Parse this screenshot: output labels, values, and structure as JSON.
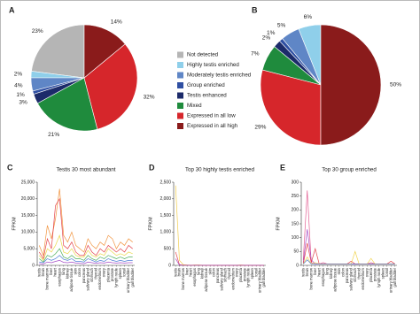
{
  "chart_data": [
    {
      "type": "pie",
      "panel": "A",
      "categories": [
        "Not detected",
        "Highly testis enriched",
        "Moderately testis enriched",
        "Group enriched",
        "Testis enhanced",
        "Mixed",
        "Expressed in all low",
        "Expressed in all high"
      ],
      "colors": [
        "#b5b5b5",
        "#8fcfea",
        "#5f86c6",
        "#2f4fa2",
        "#1c2b6a",
        "#1f8b3d",
        "#d6262b",
        "#8a1b1b"
      ],
      "values": [
        23,
        2,
        4,
        1,
        3,
        21,
        32,
        14
      ],
      "value_labels": [
        "23%",
        "2%",
        "4%",
        "1%",
        "3%",
        "21%",
        "32%",
        "14%"
      ]
    },
    {
      "type": "pie",
      "panel": "B",
      "values": [
        null,
        6,
        5,
        1,
        2,
        7,
        29,
        50
      ],
      "value_labels": [
        null,
        "6%",
        "5%",
        "1%",
        "2%",
        "7%",
        "29%",
        "50%"
      ]
    },
    {
      "type": "line",
      "panel": "C",
      "title": "Testis 30 most abundant",
      "y_label": "FPKM",
      "categories": [
        "testis",
        "brain",
        "bone marrow",
        "liver",
        "heart",
        "esophagus",
        "lung",
        "kidney",
        "adipose tissue",
        "skin",
        "colon",
        "pancreas",
        "salivary gland",
        "stomach",
        "thyroid",
        "endometrium",
        "ovary",
        "placenta",
        "prostate",
        "lymph node",
        "spleen",
        "tonsil",
        "urinary bladder",
        "gall bladder"
      ],
      "ylim": [
        0,
        25000
      ],
      "yticks": [
        0,
        {
          "value": 5000,
          "label": "5,000"
        },
        {
          "value": 10000,
          "label": "10,000"
        },
        {
          "value": 15000,
          "label": "15,000"
        },
        {
          "value": 20000,
          "label": "20,000"
        },
        {
          "value": 25000,
          "label": "25,000"
        }
      ],
      "series": [
        {
          "color": "#f08a2c",
          "values": [
            6000,
            3000,
            12000,
            8000,
            14000,
            23000,
            9000,
            7000,
            10000,
            6000,
            5000,
            4000,
            8000,
            6000,
            5000,
            7000,
            6000,
            9000,
            8000,
            5000,
            7000,
            6000,
            8000,
            7000
          ]
        },
        {
          "color": "#e0303a",
          "values": [
            4000,
            2000,
            8000,
            5000,
            18000,
            20000,
            6000,
            5000,
            7000,
            4000,
            3000,
            3000,
            6000,
            4000,
            3000,
            5000,
            4000,
            6000,
            5000,
            4000,
            5000,
            4000,
            6000,
            5000
          ]
        },
        {
          "color": "#e8d43a",
          "values": [
            3000,
            1500,
            5000,
            4000,
            6000,
            9000,
            4000,
            3500,
            5000,
            3000,
            2500,
            2500,
            4500,
            3000,
            2500,
            3500,
            3000,
            5000,
            4000,
            3000,
            3500,
            3000,
            4000,
            3500
          ]
        },
        {
          "color": "#3aa54a",
          "values": [
            2000,
            1000,
            3000,
            2500,
            3500,
            5000,
            2500,
            2000,
            3000,
            2000,
            2000,
            1500,
            3000,
            2000,
            1500,
            2500,
            2000,
            3000,
            2500,
            2000,
            2500,
            2000,
            2500,
            2500
          ]
        },
        {
          "color": "#3a6fd0",
          "values": [
            1000,
            800,
            2000,
            1500,
            2000,
            3000,
            1800,
            1500,
            2000,
            1200,
            1200,
            1000,
            2000,
            1500,
            1000,
            1500,
            1200,
            2000,
            1500,
            1200,
            1500,
            1200,
            1500,
            1500
          ]
        },
        {
          "color": "#9b3ac0",
          "values": [
            500,
            400,
            1000,
            800,
            1200,
            1500,
            900,
            800,
            1000,
            700,
            600,
            500,
            1000,
            800,
            600,
            800,
            700,
            1000,
            800,
            700,
            800,
            700,
            800,
            800
          ]
        }
      ]
    },
    {
      "type": "line",
      "panel": "D",
      "title": "Top 30 highly testis enriched",
      "y_label": "FPKM",
      "categories": [
        "testis",
        "brain",
        "bone marrow",
        "liver",
        "heart",
        "esophagus",
        "lung",
        "kidney",
        "adipose tissue",
        "skin",
        "colon",
        "pancreas",
        "salivary gland",
        "stomach",
        "thyroid",
        "endometrium",
        "ovary",
        "placenta",
        "prostate",
        "lymph node",
        "spleen",
        "tonsil",
        "urinary bladder",
        "gall bladder"
      ],
      "ylim": [
        0,
        2500
      ],
      "yticks": [
        0,
        500,
        {
          "value": 1000,
          "label": "1,000"
        },
        {
          "value": 1500,
          "label": "1,500"
        },
        {
          "value": 2000,
          "label": "2,000"
        },
        {
          "value": 2500,
          "label": "2,500"
        }
      ],
      "series": [
        {
          "color": "#f0c83a",
          "values": [
            2400,
            150,
            20,
            10,
            5,
            10,
            10,
            5,
            5,
            5,
            5,
            5,
            5,
            5,
            5,
            5,
            5,
            10,
            5,
            5,
            5,
            5,
            5,
            5
          ]
        },
        {
          "color": "#e0303a",
          "values": [
            400,
            20,
            5,
            5,
            2,
            5,
            5,
            2,
            2,
            2,
            2,
            2,
            2,
            2,
            2,
            2,
            2,
            5,
            2,
            2,
            2,
            2,
            2,
            2
          ]
        },
        {
          "color": "#9b3ac0",
          "values": [
            200,
            10,
            2,
            2,
            1,
            2,
            2,
            1,
            1,
            1,
            1,
            1,
            1,
            1,
            1,
            1,
            1,
            2,
            1,
            1,
            1,
            1,
            1,
            1
          ]
        }
      ]
    },
    {
      "type": "line",
      "panel": "E",
      "title": "Top 30 group enriched",
      "y_label": "FPKM",
      "categories": [
        "testis",
        "brain",
        "bone marrow",
        "liver",
        "heart",
        "esophagus",
        "lung",
        "kidney",
        "adipose tissue",
        "skin",
        "colon",
        "pancreas",
        "salivary gland",
        "stomach",
        "thyroid",
        "endometrium",
        "ovary",
        "placenta",
        "prostate",
        "lymph node",
        "spleen",
        "tonsil",
        "urinary bladder",
        "gall bladder"
      ],
      "ylim": [
        0,
        300
      ],
      "yticks": [
        0,
        50,
        100,
        150,
        200,
        250,
        300
      ],
      "series": [
        {
          "color": "#e0508a",
          "values": [
            20,
            270,
            10,
            5,
            5,
            10,
            5,
            5,
            5,
            5,
            5,
            5,
            5,
            5,
            5,
            5,
            5,
            10,
            5,
            5,
            5,
            5,
            5,
            5
          ]
        },
        {
          "color": "#9b3ac0",
          "values": [
            10,
            130,
            20,
            5,
            5,
            5,
            5,
            5,
            5,
            5,
            5,
            5,
            5,
            5,
            5,
            5,
            5,
            5,
            5,
            5,
            5,
            5,
            5,
            5
          ]
        },
        {
          "color": "#e0303a",
          "values": [
            5,
            80,
            10,
            60,
            5,
            5,
            5,
            5,
            5,
            5,
            5,
            5,
            15,
            5,
            5,
            5,
            5,
            5,
            5,
            5,
            5,
            5,
            15,
            5
          ]
        },
        {
          "color": "#f0d040",
          "values": [
            5,
            30,
            5,
            10,
            5,
            5,
            5,
            5,
            5,
            5,
            5,
            5,
            5,
            50,
            5,
            5,
            5,
            25,
            5,
            5,
            5,
            5,
            5,
            5
          ]
        },
        {
          "color": "#3a6fd0",
          "values": [
            5,
            20,
            5,
            5,
            5,
            5,
            5,
            5,
            5,
            5,
            5,
            5,
            5,
            5,
            5,
            5,
            5,
            5,
            5,
            5,
            5,
            5,
            5,
            5
          ]
        }
      ]
    }
  ]
}
